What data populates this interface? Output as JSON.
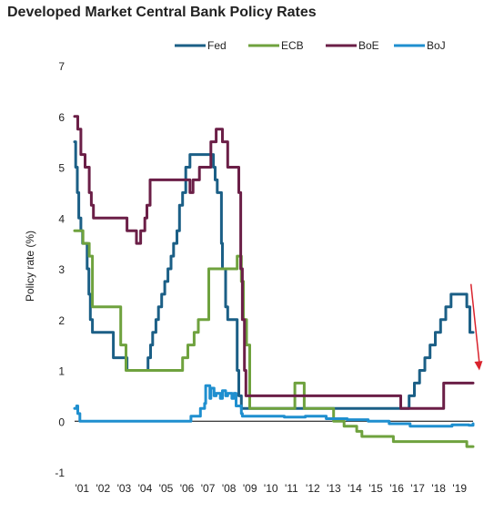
{
  "chart_data": {
    "type": "line",
    "title": "Developed Market Central Bank Policy Rates",
    "xlabel": "",
    "ylabel": "Policy rate (%)",
    "ylim": [
      -1,
      7
    ],
    "xlim": [
      2001.0,
      2020.0
    ],
    "y_ticks": [
      -1,
      0,
      1,
      2,
      3,
      4,
      5,
      6,
      7
    ],
    "x_tick_labels": [
      "'01",
      "'02",
      "'03",
      "'04",
      "'05",
      "'06",
      "'07",
      "'08",
      "'09",
      "'10",
      "'11",
      "'12",
      "'13",
      "'14",
      "'15",
      "'16",
      "'17",
      "'18",
      "'19"
    ],
    "grid": false,
    "legend_position": "top",
    "series": [
      {
        "name": "Fed",
        "color": "#1b5f86",
        "x": [
          2001.0,
          2001.05,
          2001.13,
          2001.2,
          2001.3,
          2001.38,
          2001.6,
          2001.68,
          2001.75,
          2001.85,
          2001.95,
          2002.85,
          2003.5,
          2004.5,
          2004.62,
          2004.72,
          2004.88,
          2005.0,
          2005.15,
          2005.3,
          2005.45,
          2005.6,
          2005.72,
          2005.88,
          2006.0,
          2006.15,
          2006.3,
          2006.5,
          2007.62,
          2007.7,
          2007.8,
          2008.0,
          2008.05,
          2008.2,
          2008.3,
          2008.75,
          2008.83,
          2008.95,
          2015.95,
          2016.95,
          2017.2,
          2017.45,
          2017.7,
          2017.95,
          2018.2,
          2018.45,
          2018.7,
          2018.95,
          2019.55,
          2019.7,
          2019.85,
          2020.0
        ],
        "values": [
          5.5,
          5.0,
          4.5,
          4.0,
          3.75,
          3.5,
          3.0,
          2.5,
          2.0,
          1.75,
          1.75,
          1.25,
          1.0,
          1.25,
          1.5,
          1.75,
          2.0,
          2.25,
          2.5,
          2.75,
          3.0,
          3.25,
          3.5,
          3.75,
          4.25,
          4.5,
          5.0,
          5.25,
          5.0,
          4.75,
          4.5,
          3.5,
          3.0,
          2.25,
          2.0,
          1.0,
          0.5,
          0.25,
          0.25,
          0.5,
          0.75,
          1.0,
          1.25,
          1.5,
          1.75,
          2.0,
          2.25,
          2.5,
          2.5,
          2.25,
          1.75,
          1.75
        ]
      },
      {
        "name": "ECB",
        "color": "#6fa23e",
        "x": [
          2001.0,
          2001.3,
          2001.4,
          2001.7,
          2001.85,
          2002.95,
          2003.2,
          2003.45,
          2005.9,
          2006.15,
          2006.4,
          2006.7,
          2006.9,
          2007.4,
          2008.5,
          2008.75,
          2008.85,
          2008.95,
          2009.05,
          2009.2,
          2009.35,
          2011.3,
          2011.5,
          2011.85,
          2011.95,
          2013.35,
          2013.85,
          2014.45,
          2014.7,
          2016.2,
          2019.7,
          2020.0
        ],
        "values": [
          3.75,
          3.75,
          3.5,
          3.25,
          2.25,
          2.25,
          1.5,
          1.0,
          1.0,
          1.25,
          1.5,
          1.75,
          2.0,
          3.0,
          3.0,
          3.25,
          3.25,
          2.75,
          2.0,
          1.5,
          0.25,
          0.25,
          0.75,
          0.75,
          0.25,
          0.0,
          -0.1,
          -0.2,
          -0.3,
          -0.4,
          -0.5,
          -0.5
        ]
      },
      {
        "name": "BoE",
        "color": "#6b1f47",
        "x": [
          2001.0,
          2001.15,
          2001.3,
          2001.5,
          2001.7,
          2001.8,
          2001.9,
          2003.1,
          2003.5,
          2003.95,
          2004.15,
          2004.35,
          2004.45,
          2004.6,
          2005.6,
          2006.5,
          2006.65,
          2006.95,
          2007.5,
          2007.75,
          2008.05,
          2008.3,
          2008.75,
          2008.83,
          2008.92,
          2009.0,
          2009.1,
          2009.17,
          2016.55,
          2018.6,
          2020.0
        ],
        "values": [
          6.0,
          5.75,
          5.25,
          5.0,
          4.5,
          4.25,
          4.0,
          4.0,
          3.75,
          3.5,
          3.75,
          4.0,
          4.25,
          4.75,
          4.75,
          4.5,
          4.75,
          5.0,
          5.5,
          5.75,
          5.5,
          5.0,
          5.0,
          4.5,
          3.0,
          2.0,
          1.0,
          0.5,
          0.25,
          0.75,
          0.75
        ]
      },
      {
        "name": "BoJ",
        "color": "#1f8fcf",
        "x": [
          2001.0,
          2001.1,
          2001.15,
          2001.25,
          2006.5,
          2006.55,
          2007.0,
          2007.2,
          2007.25,
          2007.45,
          2007.5,
          2007.65,
          2007.75,
          2007.95,
          2008.05,
          2008.2,
          2008.3,
          2008.5,
          2008.6,
          2008.7,
          2008.82,
          2008.95,
          2009.0,
          2010.0,
          2011.0,
          2012.0,
          2013.0,
          2014.0,
          2015.0,
          2016.0,
          2016.5,
          2017.0,
          2018.0,
          2019.0,
          2019.8,
          2020.0
        ],
        "values": [
          0.25,
          0.3,
          0.15,
          0.0,
          0.0,
          0.1,
          0.25,
          0.35,
          0.7,
          0.45,
          0.65,
          0.5,
          0.55,
          0.45,
          0.6,
          0.5,
          0.55,
          0.45,
          0.55,
          0.3,
          0.3,
          0.15,
          0.1,
          0.1,
          0.08,
          0.1,
          0.05,
          0.03,
          0.0,
          -0.05,
          -0.05,
          -0.1,
          -0.1,
          -0.07,
          -0.08,
          -0.05
        ]
      }
    ],
    "annotations": [
      {
        "type": "arrow",
        "color": "#d9232d",
        "from": [
          2019.9,
          2.7
        ],
        "to": [
          2020.3,
          1.0
        ]
      }
    ],
    "zero_line": true
  }
}
